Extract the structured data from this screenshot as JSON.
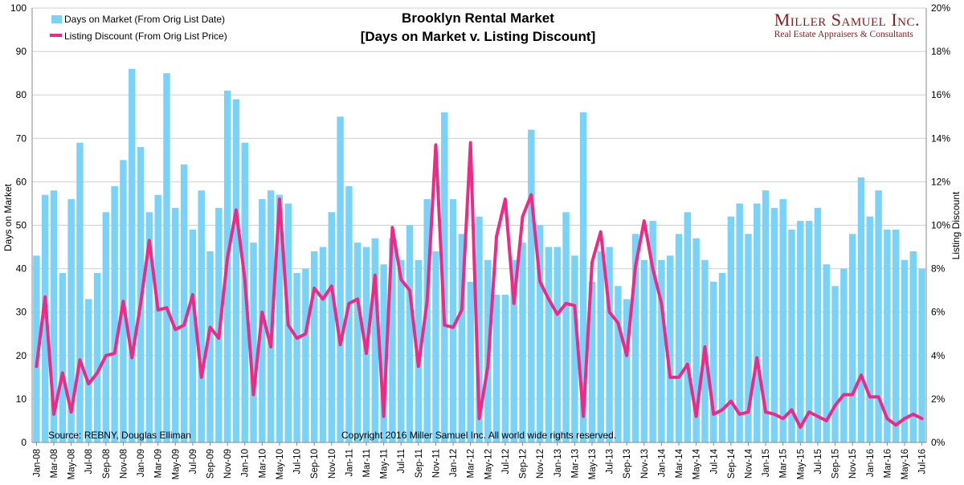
{
  "brand": {
    "name": "Miller Samuel Inc.",
    "tagline": "Real Estate Appraisers & Consultants"
  },
  "colors": {
    "bar": "#79d3f8",
    "line": "#ef2a86",
    "grid": "#cfcfcf",
    "axis": "#888888"
  },
  "chart_data": {
    "type": "bar",
    "title": "Brooklyn Rental Market",
    "subtitle": "[Days on Market v. Listing Discount]",
    "ylabel": "Days on Market",
    "y2label": "Listing Discount",
    "ylim": [
      0,
      100
    ],
    "y2lim": [
      0,
      20
    ],
    "yticks": [
      "0",
      "10",
      "20",
      "30",
      "40",
      "50",
      "60",
      "70",
      "80",
      "90",
      "100"
    ],
    "y2ticks": [
      "0%",
      "2%",
      "4%",
      "6%",
      "8%",
      "10%",
      "12%",
      "14%",
      "16%",
      "18%",
      "20%"
    ],
    "legend": [
      "Days on Market (From Orig List Date)",
      "Listing Discount (From Orig List Price)"
    ],
    "source": "Source: REBNY, Douglas Elliman",
    "copyright": "Copyright 2016 Miller Samuel Inc.  All world wide rights reserved.",
    "tick_labels": [
      "Jan-08",
      "Mar-08",
      "May-08",
      "Jul-08",
      "Sep-08",
      "Nov-08",
      "Jan-09",
      "Mar-09",
      "May-09",
      "Jul-09",
      "Sep-09",
      "Nov-09",
      "Jan-10",
      "Mar-10",
      "May-10",
      "Jul-10",
      "Sep-10",
      "Nov-10",
      "Jan-11",
      "Mar-11",
      "May-11",
      "Jul-11",
      "Sep-11",
      "Nov-11",
      "Jan-12",
      "Mar-12",
      "May-12",
      "Jul-12",
      "Sep-12",
      "Nov-12",
      "Jan-13",
      "Mar-13",
      "May-13",
      "Jul-13",
      "Sep-13",
      "Nov-13",
      "Jan-14",
      "Mar-14",
      "May-14",
      "Jul-14",
      "Sep-14",
      "Nov-14",
      "Jan-15",
      "Mar-15",
      "May-15",
      "Jul-15",
      "Sep-15",
      "Nov-15",
      "Jan-16",
      "Mar-16",
      "May-16",
      "Jul-16"
    ],
    "series": [
      {
        "name": "Days on Market (From Orig List Date)",
        "type": "bar",
        "axis": "left",
        "values": [
          43,
          57,
          58,
          39,
          56,
          69,
          33,
          39,
          53,
          59,
          65,
          86,
          68,
          53,
          57,
          85,
          54,
          64,
          49,
          58,
          44,
          54,
          81,
          79,
          69,
          46,
          56,
          58,
          57,
          55,
          39,
          40,
          44,
          45,
          53,
          75,
          59,
          46,
          45,
          47,
          41,
          47,
          42,
          50,
          42,
          56,
          44,
          76,
          56,
          48,
          37,
          52,
          42,
          34,
          34,
          42,
          46,
          72,
          50,
          45,
          45,
          53,
          43,
          76,
          37,
          44,
          45,
          36,
          33,
          48,
          42,
          51,
          42,
          43,
          48,
          53,
          47,
          42,
          37,
          39,
          52,
          55,
          48,
          55,
          58,
          54,
          56,
          49,
          51,
          51,
          54,
          41,
          36,
          40,
          48,
          61,
          52,
          58,
          49,
          49,
          42,
          44,
          40
        ]
      },
      {
        "name": "Listing Discount (From Orig List Price)",
        "type": "line",
        "axis": "right",
        "values": [
          3.5,
          6.7,
          1.3,
          3.2,
          1.4,
          3.8,
          2.7,
          3.2,
          4.0,
          4.1,
          6.5,
          3.9,
          6.4,
          9.3,
          6.1,
          6.2,
          5.2,
          5.4,
          6.8,
          3.0,
          5.3,
          4.8,
          8.5,
          10.7,
          7.5,
          2.2,
          6.0,
          4.4,
          11.2,
          5.4,
          4.8,
          5.0,
          7.1,
          6.6,
          7.2,
          4.5,
          6.4,
          6.6,
          4.1,
          7.7,
          1.2,
          9.9,
          7.5,
          7.0,
          3.5,
          6.5,
          13.7,
          5.4,
          5.3,
          6.1,
          13.8,
          1.1,
          3.5,
          9.5,
          11.2,
          6.4,
          10.4,
          11.4,
          7.4,
          6.6,
          5.9,
          6.4,
          6.3,
          1.2,
          8.3,
          9.7,
          6.0,
          5.5,
          4.0,
          8.1,
          10.2,
          8.0,
          6.4,
          3.0,
          3.0,
          3.6,
          1.2,
          4.4,
          1.3,
          1.5,
          1.9,
          1.3,
          1.4,
          3.9,
          1.4,
          1.3,
          1.1,
          1.5,
          0.7,
          1.4,
          1.2,
          1.0,
          1.7,
          2.2,
          2.2,
          3.1,
          2.1,
          2.1,
          1.1,
          0.8,
          1.1,
          1.3,
          1.1
        ]
      }
    ]
  }
}
